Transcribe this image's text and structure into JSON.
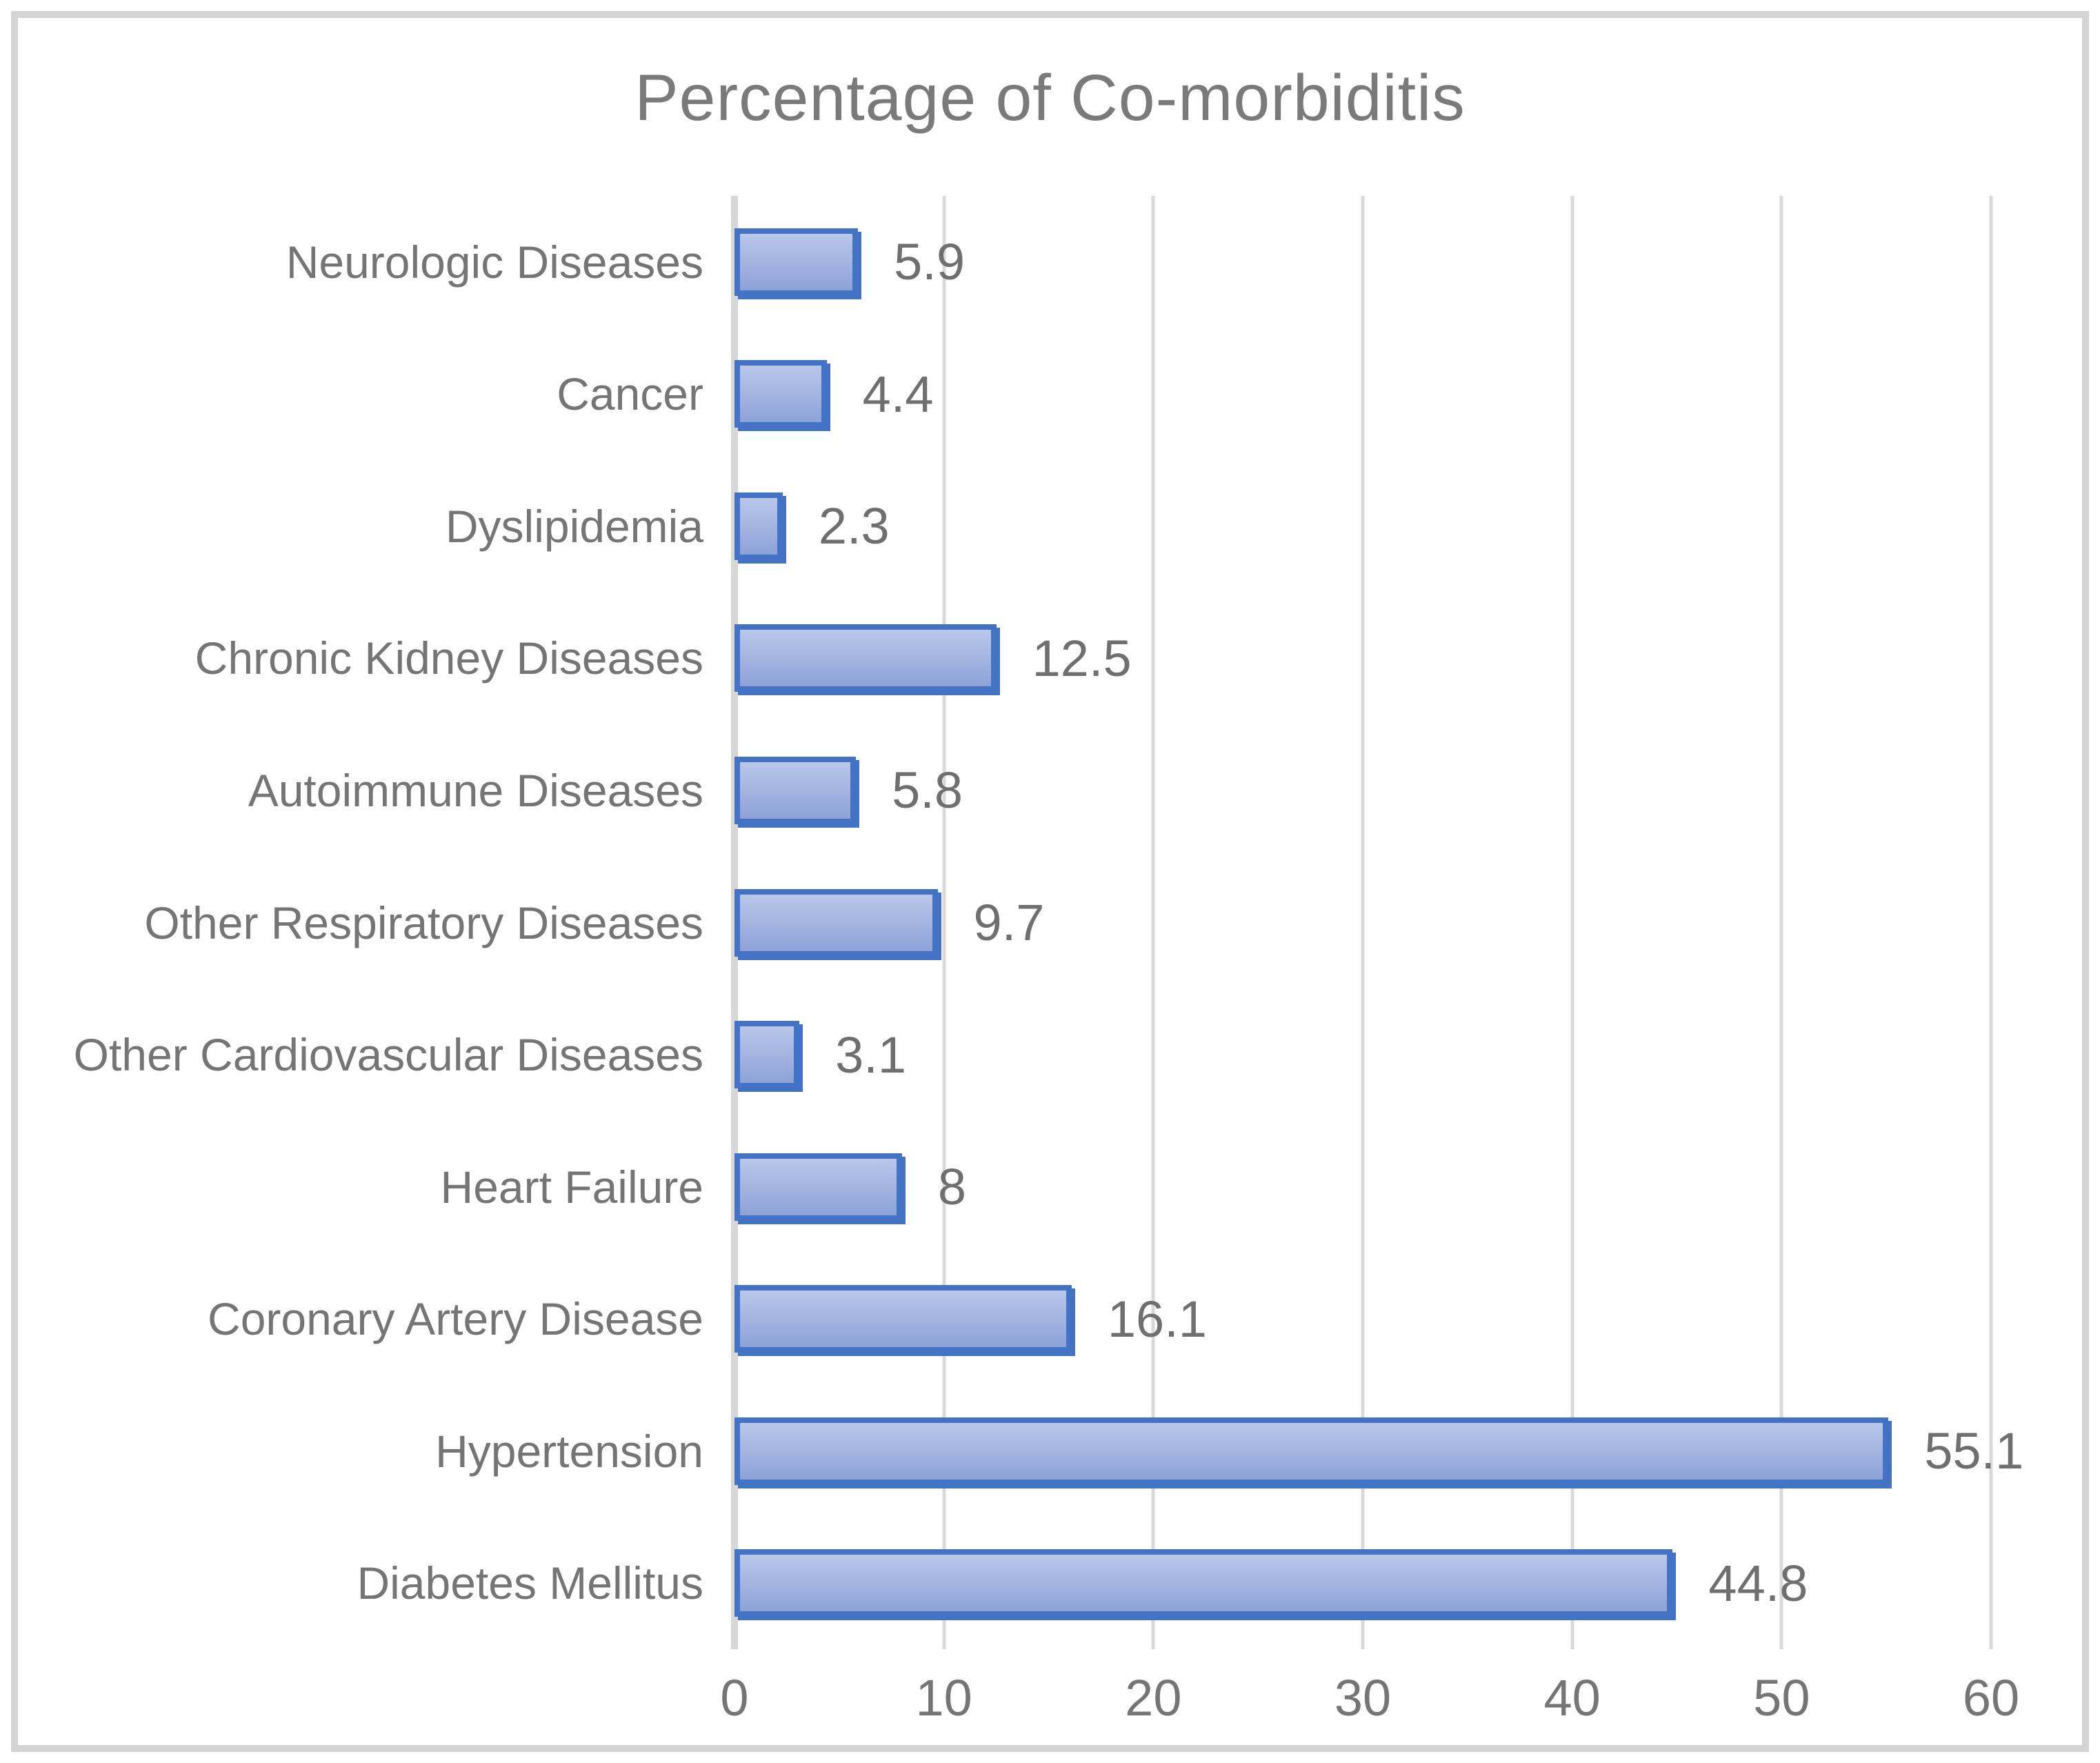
{
  "chart_data": {
    "type": "bar",
    "orientation": "horizontal",
    "title": "Percentage of Co-morbiditis",
    "categories": [
      "Neurologic Diseases",
      "Cancer",
      "Dyslipidemia",
      "Chronic Kidney Diseases",
      "Autoimmune Diseases",
      "Other Respiratory Diseases",
      "Other Cardiovascular Diseases",
      "Heart Failure",
      "Coronary Artery Disease",
      "Hypertension",
      "Diabetes Mellitus"
    ],
    "values": [
      5.9,
      4.4,
      2.3,
      12.5,
      5.8,
      9.7,
      3.1,
      8,
      16.1,
      55.1,
      44.8
    ],
    "value_labels": [
      "5.9",
      "4.4",
      "2.3",
      "12.5",
      "5.8",
      "9.7",
      "3.1",
      "8",
      "16.1",
      "55.1",
      "44.8"
    ],
    "xlabel": "",
    "ylabel": "",
    "xlim": [
      0,
      60
    ],
    "xticks": [
      0,
      10,
      20,
      30,
      40,
      50,
      60
    ],
    "grid": "vertical-on",
    "legend": "none",
    "colors": {
      "bar_border": "#4472C4",
      "bar_fill_top": "#BAC7EA",
      "bar_fill_bottom": "#8DA2D8",
      "gridline": "#D9D9D9",
      "axis_line": "#D7D7D7",
      "frame_border": "#D4D4D4",
      "title_text": "#7A7A7A",
      "label_text": "#757575",
      "background": "#FFFFFF"
    }
  }
}
